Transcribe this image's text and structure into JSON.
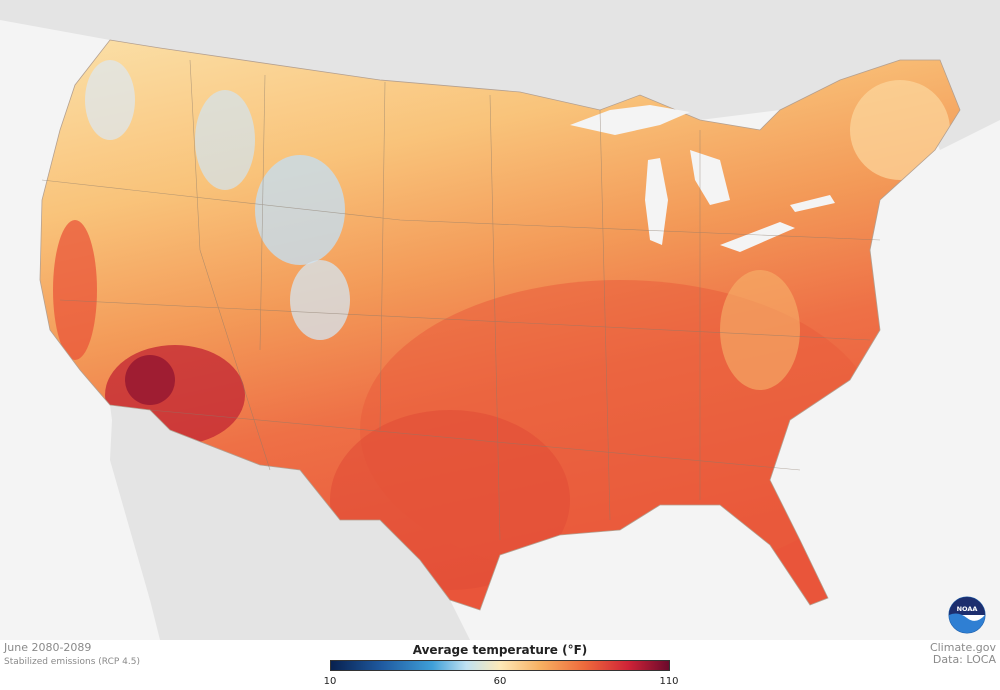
{
  "map": {
    "variable": "Average temperature (°F)",
    "period": "June 2080-2089",
    "scenario": "Stabilized emissions (RCP 4.5)"
  },
  "legend": {
    "title": "Average temperature (°F)",
    "min_label": "10",
    "mid_label": "60",
    "max_label": "110",
    "scale_colors": [
      "#08214f",
      "#1f5aa0",
      "#3f9fd8",
      "#bfe1f2",
      "#fde9b8",
      "#f7b062",
      "#ee6a3c",
      "#cf2337",
      "#6b0a2c"
    ]
  },
  "credits": {
    "site": "Climate.gov",
    "data": "Data: LOCA"
  },
  "logo": {
    "icon": "noaa-logo-icon",
    "text": "NOAA"
  },
  "colors": {
    "land_background": "#e4e4e4",
    "ocean_background": "#f4f4f4",
    "hot": "#ee6a3c",
    "warm": "#f9bf6e",
    "cool": "#c6ddef",
    "hottest": "#a61b31"
  }
}
